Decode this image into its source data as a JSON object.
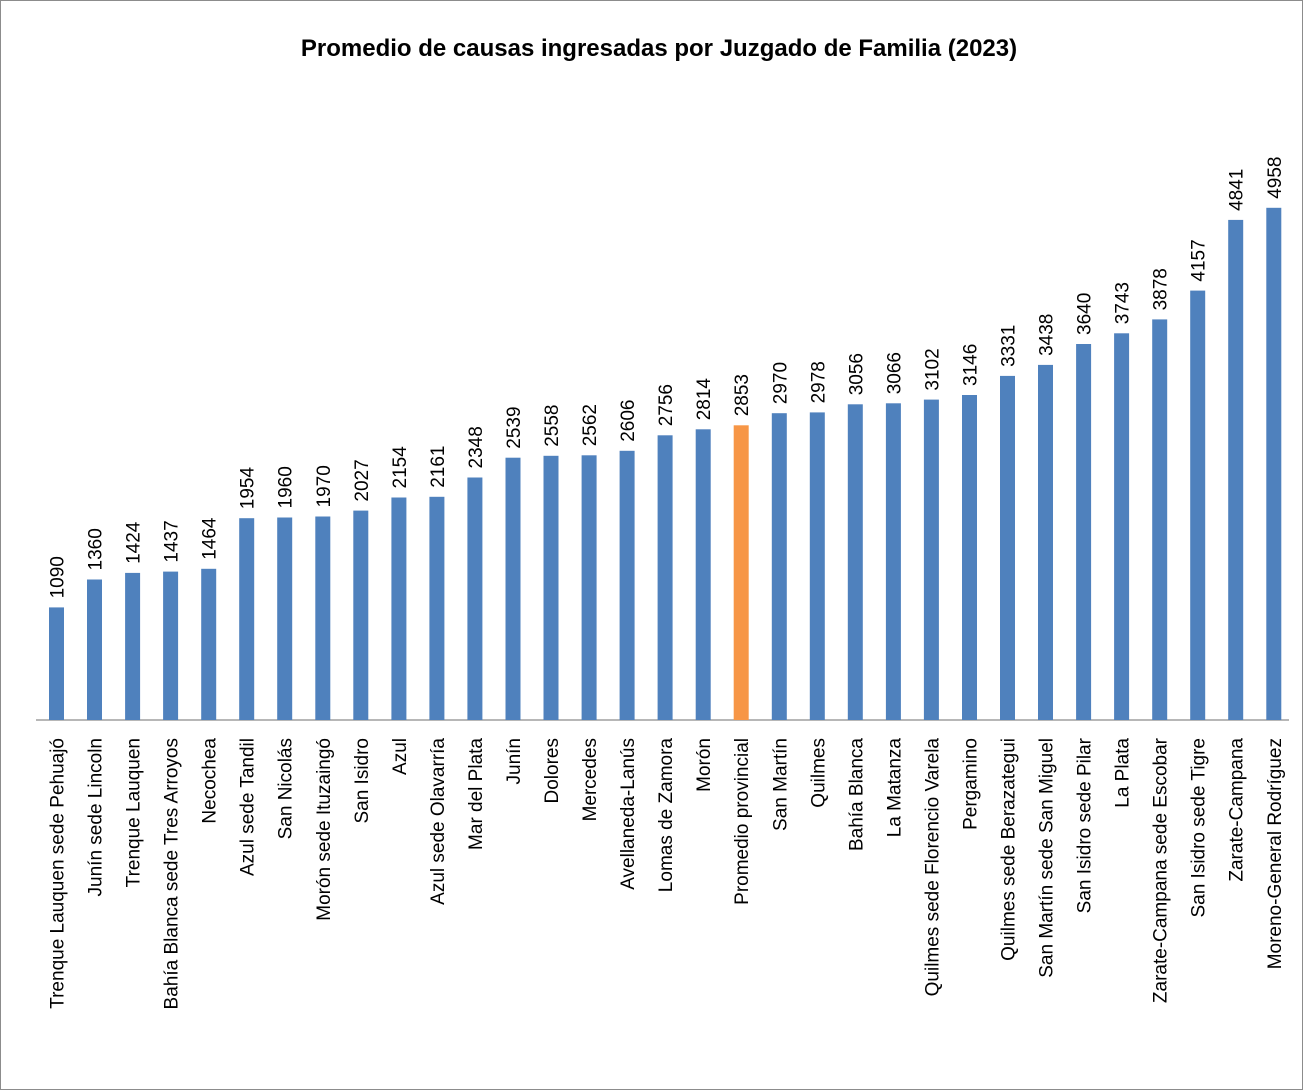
{
  "chart_data": {
    "type": "bar",
    "title": "Promedio de causas ingresadas por Juzgado de Familia (2023)",
    "xlabel": "",
    "ylabel": "",
    "ylim": [
      0,
      5000
    ],
    "grid": false,
    "legend": "none",
    "colors": {
      "bar": "#4f81bd",
      "highlight": "#f79646"
    },
    "highlight_category": "Promedio provincial",
    "categories": [
      "Trenque Lauquen sede Pehuajó",
      "Junín sede Lincoln",
      "Trenque Lauquen",
      "Bahía Blanca sede Tres Arroyos",
      "Necochea",
      "Azul sede Tandil",
      "San Nicolás",
      "Morón sede Ituzaingó",
      "San Isidro",
      "Azul",
      "Azul sede Olavarría",
      "Mar del Plata",
      "Junín",
      "Dolores",
      "Mercedes",
      "Avellaneda-Lanús",
      "Lomas de Zamora",
      "Morón",
      "Promedio provincial",
      "San Martín",
      "Quilmes",
      "Bahía Blanca",
      "La Matanza",
      "Quilmes sede Florencio Varela",
      "Pergamino",
      "Quilmes sede Berazategui",
      "San Martín sede San Miguel",
      "San Isidro sede Pilar",
      "La Plata",
      "Zarate-Campana sede Escobar",
      "San Isidro sede Tigre",
      "Zarate-Campana",
      "Moreno-General Rodríguez"
    ],
    "values": [
      1090,
      1360,
      1424,
      1437,
      1464,
      1954,
      1960,
      1970,
      2027,
      2154,
      2161,
      2348,
      2539,
      2558,
      2562,
      2606,
      2756,
      2814,
      2853,
      2970,
      2978,
      3056,
      3066,
      3102,
      3146,
      3331,
      3438,
      3640,
      3743,
      3878,
      4157,
      4841,
      4958
    ]
  }
}
